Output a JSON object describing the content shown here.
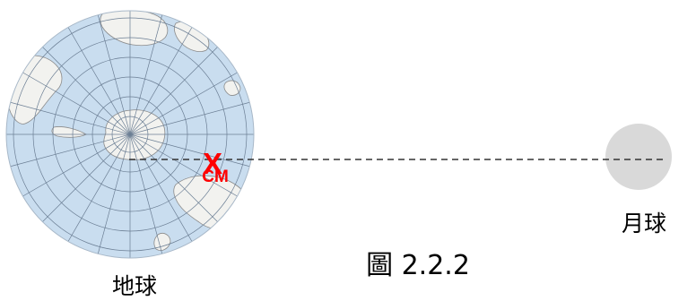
{
  "earth": {
    "label": "地球",
    "ocean_color": "#c9ddef",
    "land_color": "#f2f2ef",
    "grid_color": "#6b7e94"
  },
  "moon": {
    "label": "月球",
    "color": "#d9d9d9"
  },
  "center_of_mass": {
    "mark": "X",
    "label": "CM",
    "color": "#ff0000"
  },
  "figure_caption": "圖 2.2.2",
  "line": {
    "style": "dashed",
    "color": "#333333"
  }
}
